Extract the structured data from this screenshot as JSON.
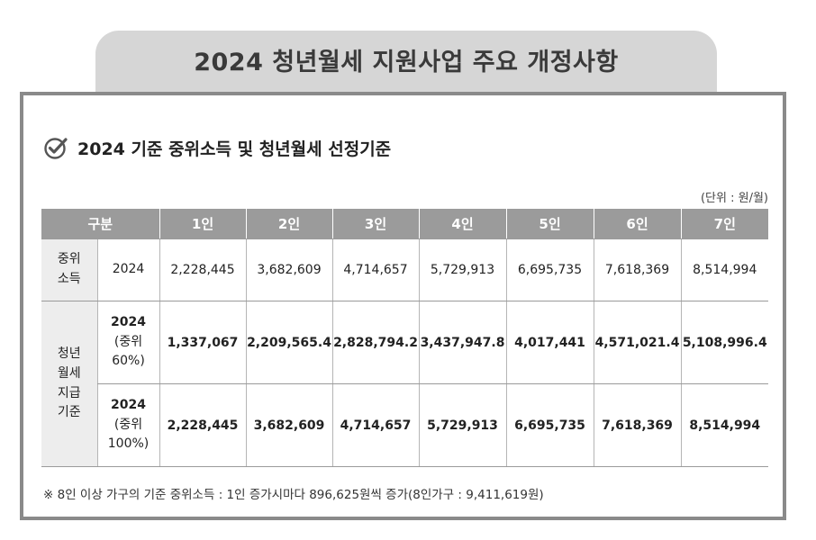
{
  "title": "2024 청년월세 지원사업 주요 개정사항",
  "subtitle": "2024 기준 중위소득 및 청년월세 선정기준",
  "unit": "(단위 : 원/월)",
  "table": {
    "header": [
      "구분",
      "1인",
      "2인",
      "3인",
      "4인",
      "5인",
      "6인",
      "7인"
    ],
    "rows": [
      {
        "category": "중위 소득",
        "sub_year": "2024",
        "sub_detail": "",
        "values": [
          "2,228,445",
          "3,682,609",
          "4,714,657",
          "5,729,913",
          "6,695,735",
          "7,618,369",
          "8,514,994"
        ]
      },
      {
        "category": "청년 월세 지급 기준",
        "sub_year": "2024",
        "sub_detail": "(중위 60%)",
        "values": [
          "1,337,067",
          "2,209,565.4",
          "2,828,794.2",
          "3,437,947.8",
          "4,017,441",
          "4,571,021.4",
          "5,108,996.4"
        ]
      },
      {
        "category": "",
        "sub_year": "2024",
        "sub_detail": "(중위 100%)",
        "values": [
          "2,228,445",
          "3,682,609",
          "4,714,657",
          "5,729,913",
          "6,695,735",
          "7,618,369",
          "8,514,994"
        ]
      }
    ]
  },
  "note": "※ 8인 이상 가구의 기준 중위소득 : 1인 증가시마다 896,625원씩 증가(8인가구 : 9,411,619원)",
  "icons": {
    "subtitle_icon": "check-circle-icon"
  },
  "colors": {
    "header_bg": "#9b9b9b",
    "title_tab_bg": "#d6d6d6",
    "frame_border": "#8a8a8a",
    "category_bg": "#ededed"
  }
}
